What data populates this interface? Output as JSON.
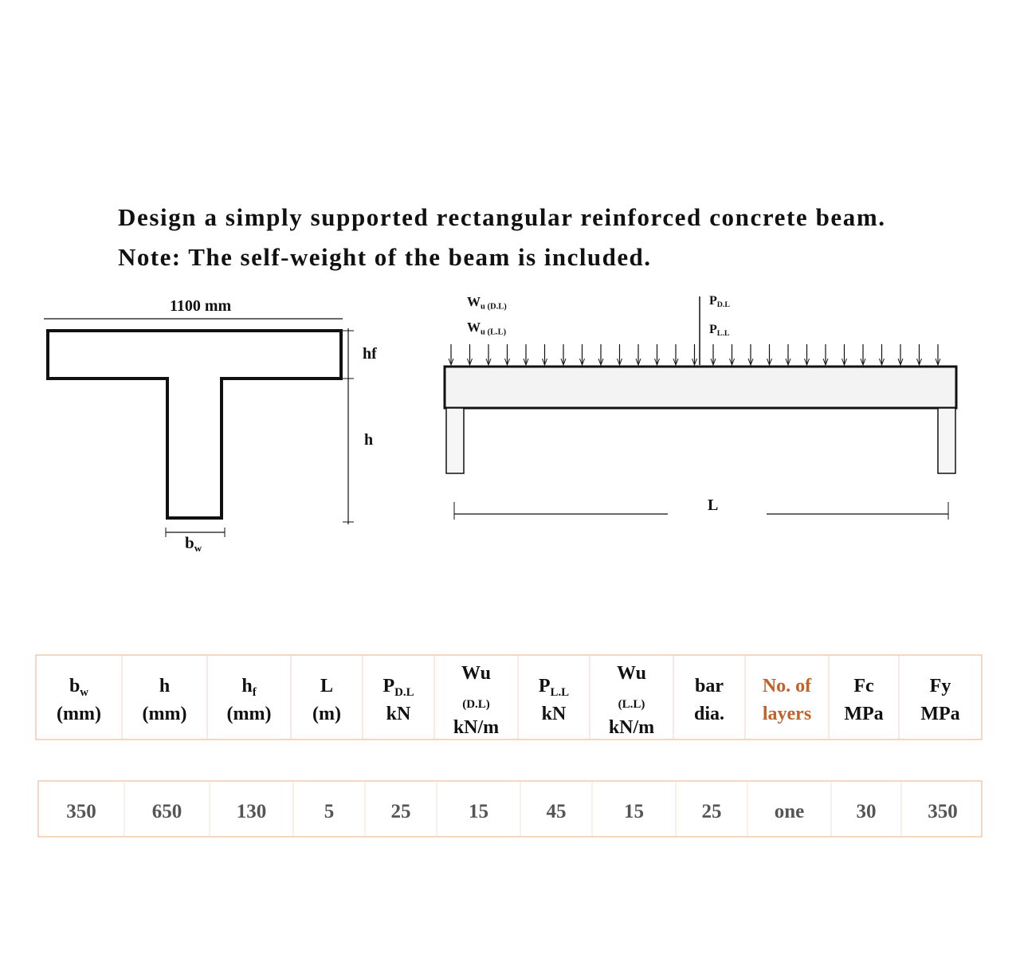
{
  "problem": {
    "lines": [
      "Design a simply supported rectangular reinforced concrete beam.",
      "Note: The self-weight of the beam is included."
    ]
  },
  "t_section": {
    "width": "1100 mm",
    "hf": "hf",
    "h": "h",
    "bw": {
      "main": "b",
      "sub": "w"
    }
  },
  "beam": {
    "wu_dl": {
      "main": "W",
      "sub": "u (D.L)"
    },
    "wu_ll": {
      "main": "W",
      "sub": "u (L.L)"
    },
    "p_dl": {
      "main": "P",
      "sub": "D.L"
    },
    "p_ll": {
      "main": "P",
      "sub": "L.L"
    },
    "span": "L"
  },
  "table": {
    "headers": [
      {
        "main": "b",
        "sub": "w",
        "unit": "(mm)"
      },
      {
        "main": "h",
        "unit": "(mm)"
      },
      {
        "main": "h",
        "sub": "f",
        "unit": "(mm)"
      },
      {
        "main": "L",
        "unit": "(m)"
      },
      {
        "main": "P",
        "sub": "D.L",
        "unit": "kN"
      },
      {
        "main": "Wu",
        "small": "(D.L)",
        "unit": "kN/m"
      },
      {
        "main": "P",
        "sub": "L.L",
        "unit": "kN"
      },
      {
        "main": "Wu",
        "small": "(L.L)",
        "unit": "kN/m"
      },
      {
        "main": "bar",
        "unit": "dia."
      },
      {
        "main": "No. of",
        "unit": "layers",
        "color": "#c0622a"
      },
      {
        "main": "Fc",
        "unit": "MPa"
      },
      {
        "main": "Fy",
        "unit": "MPa"
      }
    ],
    "rows": [
      [
        350,
        650,
        130,
        5,
        25,
        15,
        45,
        15,
        25,
        "one",
        30,
        350
      ]
    ]
  }
}
